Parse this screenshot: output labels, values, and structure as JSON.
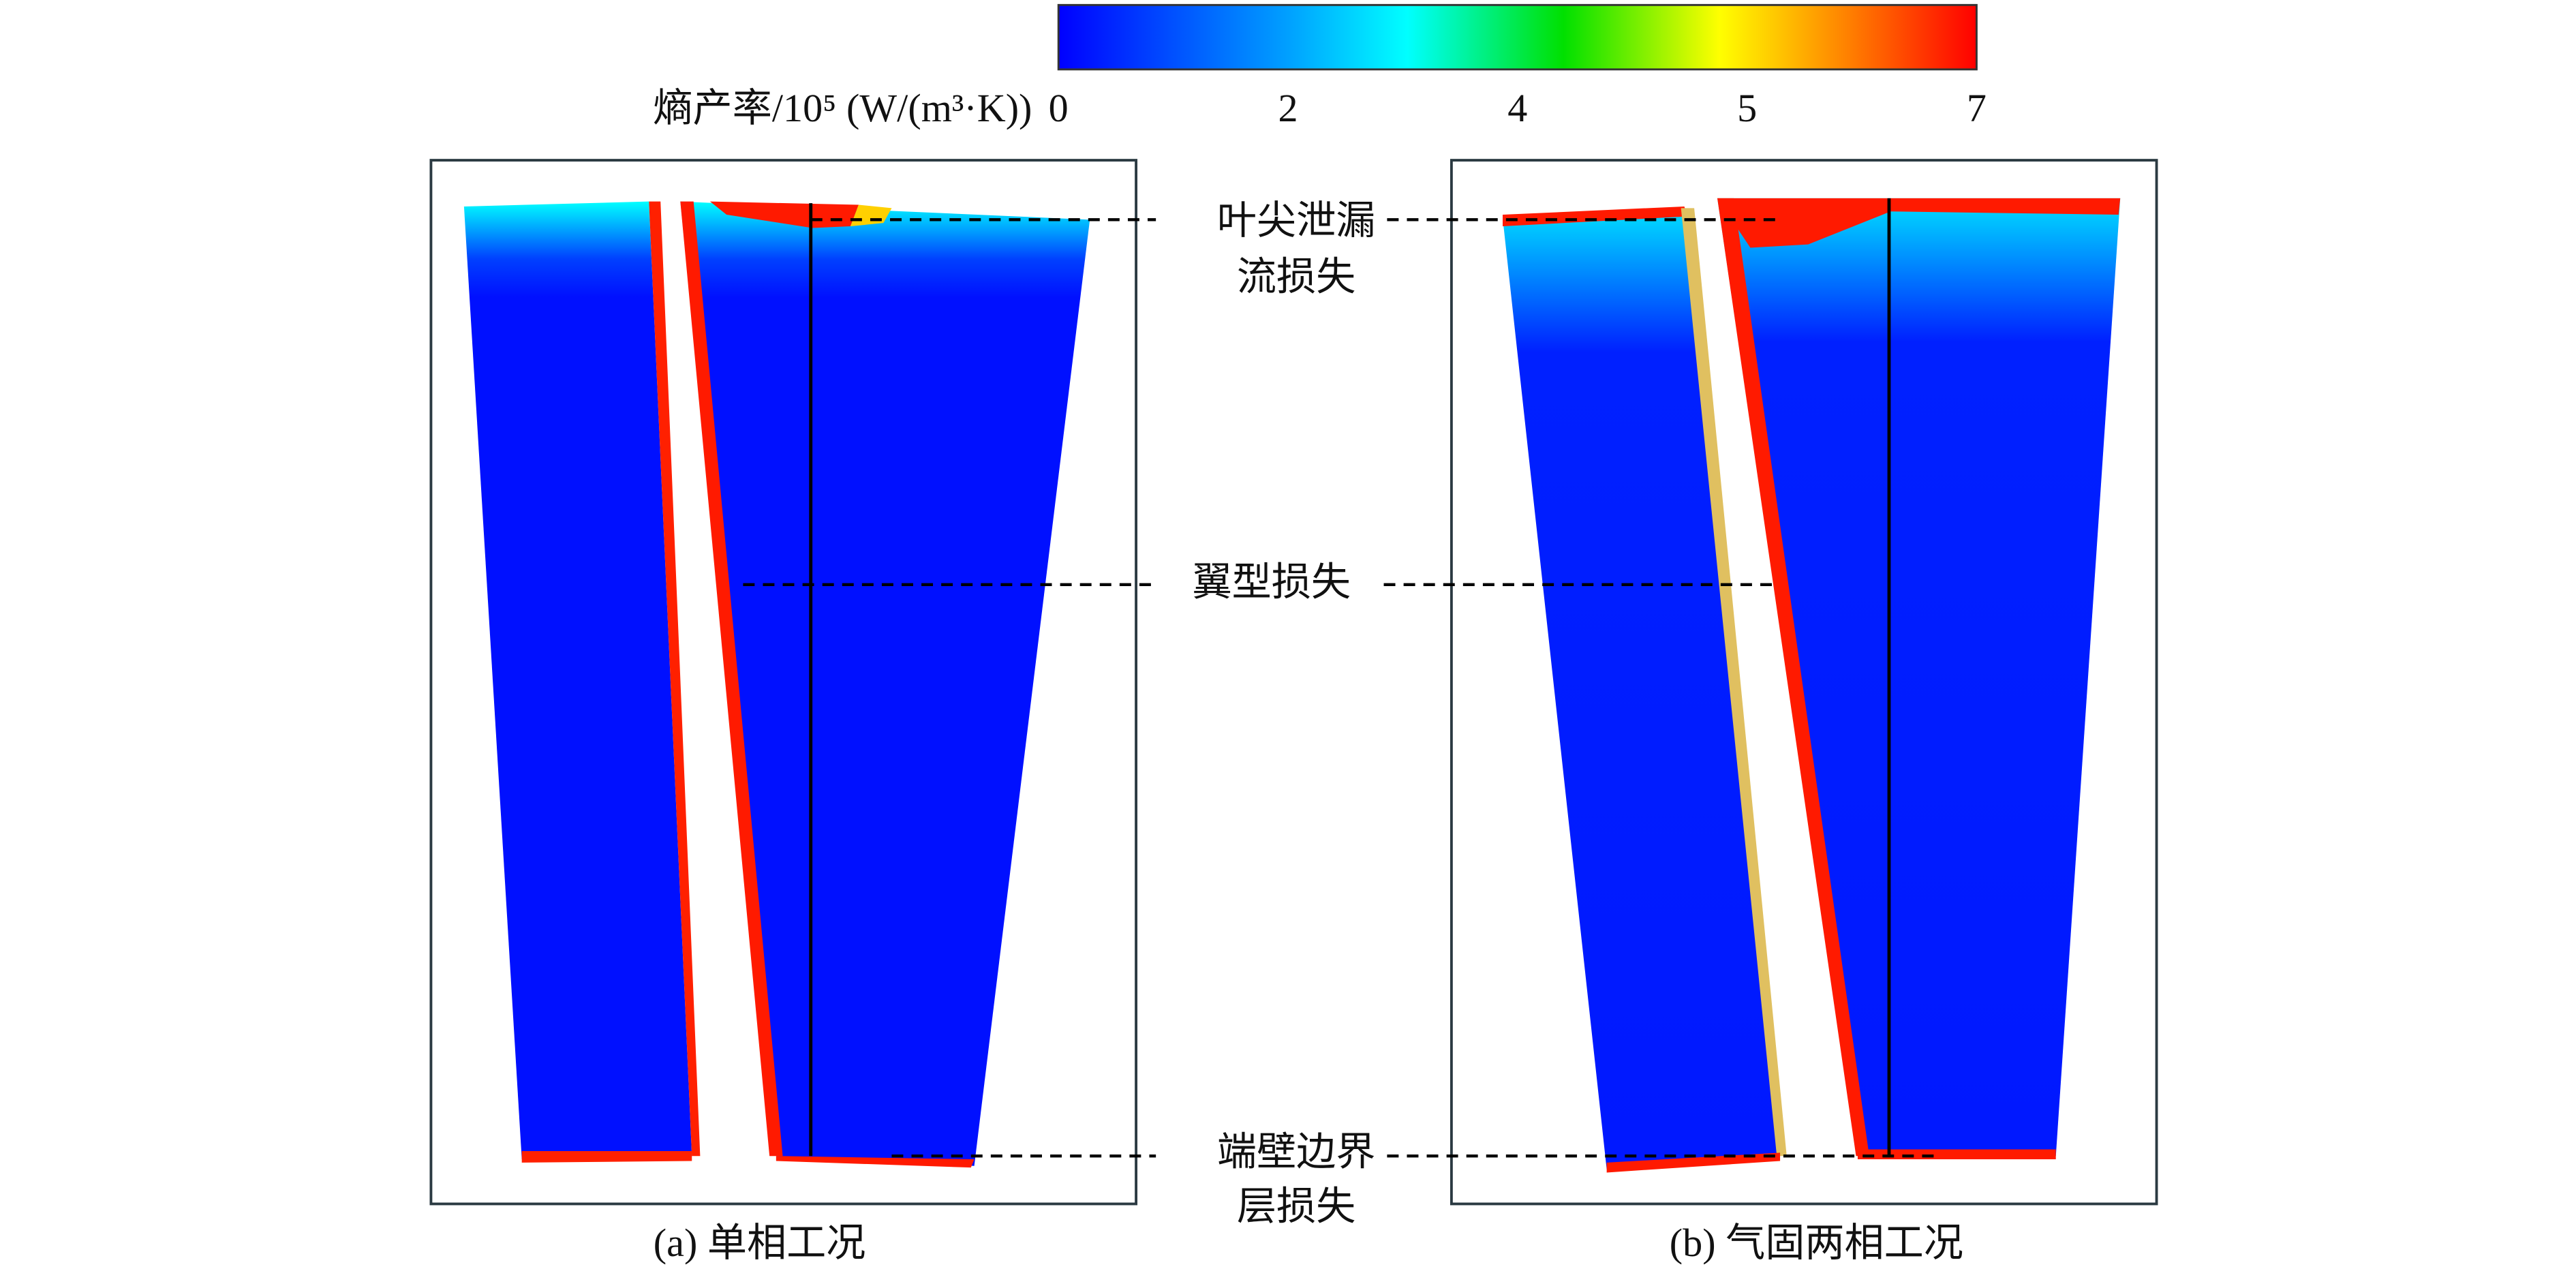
{
  "colorbar": {
    "label": "熵产率/10⁵ (W/(m³·K))",
    "ticks": [
      "0",
      "2",
      "4",
      "5",
      "7"
    ]
  },
  "annotations": {
    "tip_leakage": [
      "叶尖泄漏",
      "流损失"
    ],
    "profile": "翼型损失",
    "endwall": [
      "端壁边界",
      "层损失"
    ]
  },
  "panels": [
    {
      "caption": "(a) 单相工况"
    },
    {
      "caption": "(b) 气固两相工况"
    }
  ]
}
